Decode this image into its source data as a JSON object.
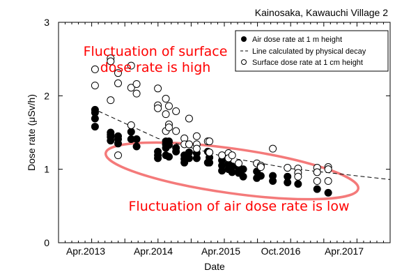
{
  "chart_data": {
    "type": "scatter",
    "title": "Kainosaka, Kawauchi Village 2",
    "xlabel": "Date",
    "ylabel": "Dose rate (μSv/h)",
    "xlim": [
      "2012-10-01",
      "2017-10-01"
    ],
    "ylim": [
      0,
      3
    ],
    "y_ticks": [
      "0",
      "1",
      "2",
      "3"
    ],
    "x_tick_labels": [
      "Apr.2013",
      "Apr.2014",
      "Apr.2015",
      "Oct.2016",
      "Apr.2017"
    ],
    "grid": false,
    "legend_position": "top-right",
    "legend": [
      {
        "label": "Air dose rate at 1 m height",
        "marker": "filled-circle"
      },
      {
        "label": "Line calculated by physical decay",
        "marker": "dashed-line"
      },
      {
        "label": "Surface dose rate at 1 cm height",
        "marker": "open-circle"
      }
    ],
    "annotations": {
      "top": [
        "Fluctuation of surface",
        "dose rate is high"
      ],
      "bottom": "Fluctuation of air dose rate is low",
      "color": "#ff0000",
      "ellipse_color": "#f47a7a"
    },
    "series": [
      {
        "name": "Air dose rate at 1 m height",
        "marker": "filled",
        "points": [
          [
            "2013-04-20",
            1.81
          ],
          [
            "2013-04-20",
            1.77
          ],
          [
            "2013-04-20",
            1.69
          ],
          [
            "2013-04-20",
            1.58
          ],
          [
            "2013-07-15",
            1.5
          ],
          [
            "2013-07-15",
            1.47
          ],
          [
            "2013-07-15",
            1.44
          ],
          [
            "2013-07-15",
            1.39
          ],
          [
            "2013-08-25",
            1.45
          ],
          [
            "2013-08-25",
            1.41
          ],
          [
            "2013-08-25",
            1.35
          ],
          [
            "2013-11-05",
            1.51
          ],
          [
            "2013-11-05",
            1.41
          ],
          [
            "2013-12-05",
            1.41
          ],
          [
            "2013-12-05",
            1.31
          ],
          [
            "2014-04-01",
            1.24
          ],
          [
            "2014-04-01",
            1.19
          ],
          [
            "2014-04-01",
            1.15
          ],
          [
            "2014-05-15",
            1.38
          ],
          [
            "2014-05-15",
            1.34
          ],
          [
            "2014-05-15",
            1.29
          ],
          [
            "2014-05-15",
            1.19
          ],
          [
            "2014-06-01",
            1.38
          ],
          [
            "2014-06-01",
            1.33
          ],
          [
            "2014-06-01",
            1.17
          ],
          [
            "2014-07-10",
            1.29
          ],
          [
            "2014-07-10",
            1.24
          ],
          [
            "2014-08-25",
            1.19
          ],
          [
            "2014-08-25",
            1.14
          ],
          [
            "2014-08-25",
            1.09
          ],
          [
            "2014-09-20",
            1.23
          ],
          [
            "2014-09-20",
            1.15
          ],
          [
            "2014-11-01",
            1.22
          ],
          [
            "2014-11-01",
            1.15
          ],
          [
            "2015-01-01",
            1.24
          ],
          [
            "2015-01-01",
            1.09
          ],
          [
            "2015-01-10",
            1.16
          ],
          [
            "2015-01-10",
            1.09
          ],
          [
            "2015-03-20",
            1.12
          ],
          [
            "2015-03-20",
            1.05
          ],
          [
            "2015-03-20",
            0.98
          ],
          [
            "2015-04-25",
            1.07
          ],
          [
            "2015-04-25",
            1.0
          ],
          [
            "2015-05-15",
            1.04
          ],
          [
            "2015-05-15",
            0.96
          ],
          [
            "2015-06-20",
            1.01
          ],
          [
            "2015-06-20",
            0.95
          ],
          [
            "2015-07-15",
            1.0
          ],
          [
            "2015-07-15",
            0.9
          ],
          [
            "2015-09-28",
            0.97
          ],
          [
            "2015-09-28",
            0.88
          ],
          [
            "2015-10-20",
            0.91
          ],
          [
            "2015-12-25",
            0.91
          ],
          [
            "2015-12-25",
            0.84
          ],
          [
            "2016-03-15",
            0.9
          ],
          [
            "2016-03-15",
            0.82
          ],
          [
            "2016-05-12",
            0.8
          ],
          [
            "2016-08-25",
            0.73
          ],
          [
            "2016-10-25",
            0.68
          ]
        ]
      },
      {
        "name": "Surface dose rate at 1 cm height",
        "marker": "open",
        "points": [
          [
            "2013-04-20",
            2.36
          ],
          [
            "2013-04-20",
            2.14
          ],
          [
            "2013-07-15",
            2.51
          ],
          [
            "2013-07-15",
            2.47
          ],
          [
            "2013-07-15",
            1.94
          ],
          [
            "2013-08-25",
            2.31
          ],
          [
            "2013-08-25",
            2.17
          ],
          [
            "2013-08-25",
            1.19
          ],
          [
            "2013-11-05",
            2.41
          ],
          [
            "2013-11-05",
            2.11
          ],
          [
            "2013-11-05",
            1.6
          ],
          [
            "2013-12-05",
            2.16
          ],
          [
            "2013-12-05",
            2.03
          ],
          [
            "2014-04-01",
            2.1
          ],
          [
            "2014-04-01",
            1.87
          ],
          [
            "2014-04-01",
            1.83
          ],
          [
            "2014-05-15",
            1.96
          ],
          [
            "2014-05-15",
            1.75
          ],
          [
            "2014-05-15",
            1.52
          ],
          [
            "2014-06-01",
            1.86
          ],
          [
            "2014-06-01",
            1.61
          ],
          [
            "2014-06-01",
            1.57
          ],
          [
            "2014-07-10",
            1.79
          ],
          [
            "2014-07-10",
            1.52
          ],
          [
            "2014-08-25",
            1.42
          ],
          [
            "2014-08-25",
            1.34
          ],
          [
            "2014-09-20",
            1.69
          ],
          [
            "2014-09-20",
            1.34
          ],
          [
            "2014-11-01",
            1.45
          ],
          [
            "2014-11-01",
            1.34
          ],
          [
            "2014-11-01",
            1.28
          ],
          [
            "2015-01-01",
            1.38
          ],
          [
            "2015-01-10",
            1.38
          ],
          [
            "2015-01-10",
            1.23
          ],
          [
            "2015-03-20",
            1.19
          ],
          [
            "2015-04-25",
            1.22
          ],
          [
            "2015-04-25",
            1.15
          ],
          [
            "2015-05-15",
            1.19
          ],
          [
            "2015-06-20",
            1.08
          ],
          [
            "2015-09-28",
            1.08
          ],
          [
            "2015-10-20",
            1.05
          ],
          [
            "2015-10-20",
            1.03
          ],
          [
            "2015-12-25",
            1.28
          ],
          [
            "2016-03-15",
            1.02
          ],
          [
            "2016-05-12",
            1.01
          ],
          [
            "2016-05-12",
            0.95
          ],
          [
            "2016-05-12",
            0.9
          ],
          [
            "2016-08-25",
            1.02
          ],
          [
            "2016-08-25",
            0.96
          ],
          [
            "2016-08-25",
            0.84
          ],
          [
            "2016-10-25",
            1.03
          ],
          [
            "2016-10-25",
            1.0
          ],
          [
            "2016-10-25",
            0.84
          ]
        ]
      },
      {
        "name": "Line calculated by physical decay",
        "marker": "dashed-line",
        "points": [
          [
            "2013-05-10",
            1.79
          ],
          [
            "2014-04-01",
            1.42
          ],
          [
            "2015-04-01",
            1.17
          ],
          [
            "2016-04-01",
            1.01
          ],
          [
            "2017-10-01",
            0.86
          ]
        ]
      }
    ]
  }
}
